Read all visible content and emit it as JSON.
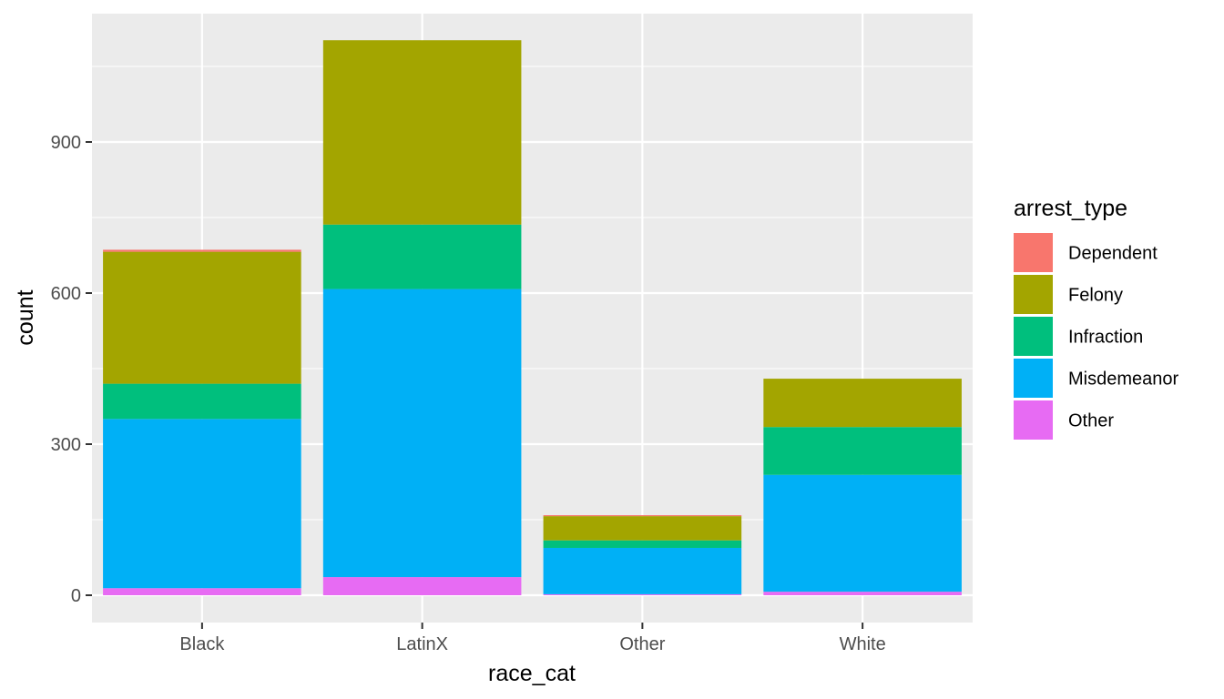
{
  "chart_data": {
    "type": "bar",
    "stacked": true,
    "title": "",
    "xlabel": "race_cat",
    "ylabel": "count",
    "categories": [
      "Black",
      "LatinX",
      "Other",
      "White"
    ],
    "ylim": [
      -50,
      1150
    ],
    "yticks": [
      0,
      300,
      600,
      900
    ],
    "grid": true,
    "legend_title": "arrest_type",
    "legend_position": "right",
    "series": [
      {
        "name": "Other",
        "color": "#E76BF3",
        "values": [
          14,
          36,
          2,
          7
        ]
      },
      {
        "name": "Misdemeanor",
        "color": "#00B0F6",
        "values": [
          336,
          572,
          92,
          232
        ]
      },
      {
        "name": "Infraction",
        "color": "#00BF7D",
        "values": [
          70,
          128,
          15,
          95
        ]
      },
      {
        "name": "Felony",
        "color": "#A3A500",
        "values": [
          262,
          366,
          48,
          96
        ]
      },
      {
        "name": "Dependent",
        "color": "#F8766D",
        "values": [
          4,
          0,
          2,
          0
        ]
      }
    ],
    "legend_order": [
      "Dependent",
      "Felony",
      "Infraction",
      "Misdemeanor",
      "Other"
    ],
    "colors": {
      "panel_background": "#EBEBEB",
      "grid_major": "#FFFFFF",
      "tick_text": "#4D4D4D",
      "tick_mark": "#333333"
    }
  }
}
